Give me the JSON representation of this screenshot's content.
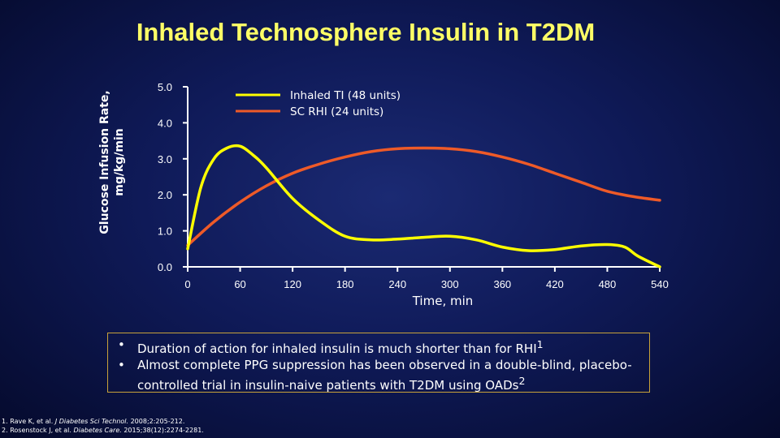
{
  "title": "Inhaled Technosphere Insulin in T2DM",
  "chart_data": {
    "type": "line",
    "ylabel_line1": "Glucose Infusion Rate,",
    "ylabel_line2": "mg/kg/min",
    "xlabel": "Time, min",
    "xlim": [
      0,
      540
    ],
    "ylim": [
      0,
      5
    ],
    "x_ticks": [
      "0",
      "60",
      "120",
      "180",
      "240",
      "300",
      "360",
      "420",
      "480",
      "540"
    ],
    "y_ticks": [
      "0.0",
      "1.0",
      "2.0",
      "3.0",
      "4.0",
      "5.0"
    ],
    "legend_position": "top-right",
    "series": [
      {
        "name": "Inhaled TI (48 units)",
        "color": "#ffff00",
        "points": [
          [
            0,
            0.5
          ],
          [
            15,
            2.2
          ],
          [
            30,
            3.0
          ],
          [
            45,
            3.3
          ],
          [
            60,
            3.35
          ],
          [
            75,
            3.1
          ],
          [
            90,
            2.75
          ],
          [
            120,
            1.9
          ],
          [
            150,
            1.3
          ],
          [
            180,
            0.85
          ],
          [
            210,
            0.75
          ],
          [
            240,
            0.77
          ],
          [
            270,
            0.82
          ],
          [
            300,
            0.85
          ],
          [
            330,
            0.75
          ],
          [
            360,
            0.55
          ],
          [
            390,
            0.45
          ],
          [
            420,
            0.48
          ],
          [
            450,
            0.58
          ],
          [
            480,
            0.62
          ],
          [
            500,
            0.55
          ],
          [
            515,
            0.3
          ],
          [
            540,
            0
          ]
        ]
      },
      {
        "name": "SC RHI (24 units)",
        "color": "#ee5a28",
        "points": [
          [
            0,
            0.6
          ],
          [
            30,
            1.25
          ],
          [
            60,
            1.8
          ],
          [
            90,
            2.25
          ],
          [
            120,
            2.6
          ],
          [
            150,
            2.85
          ],
          [
            180,
            3.05
          ],
          [
            210,
            3.2
          ],
          [
            240,
            3.28
          ],
          [
            270,
            3.3
          ],
          [
            300,
            3.28
          ],
          [
            330,
            3.2
          ],
          [
            360,
            3.05
          ],
          [
            390,
            2.85
          ],
          [
            420,
            2.6
          ],
          [
            450,
            2.35
          ],
          [
            480,
            2.1
          ],
          [
            510,
            1.95
          ],
          [
            540,
            1.85
          ]
        ]
      }
    ]
  },
  "bullets": [
    {
      "symbol": "•",
      "text": "Duration of action for inhaled insulin is much shorter than for RHI",
      "sup": "1"
    },
    {
      "symbol": "•",
      "text": "Almost complete PPG suppression has been observed in a double-blind, placebo-controlled trial in insulin-naive patients with T2DM using OADs",
      "sup": "2"
    }
  ],
  "references": [
    {
      "num": "1.",
      "authors": "Rave K, et al.",
      "journal": "J Diabetes Sci Technol.",
      "details": "2008;2:205-212."
    },
    {
      "num": "2.",
      "authors": "Rosenstock J, et al.",
      "journal": "Diabetes Care.",
      "details": "2015;38(12):2274-2281."
    }
  ]
}
